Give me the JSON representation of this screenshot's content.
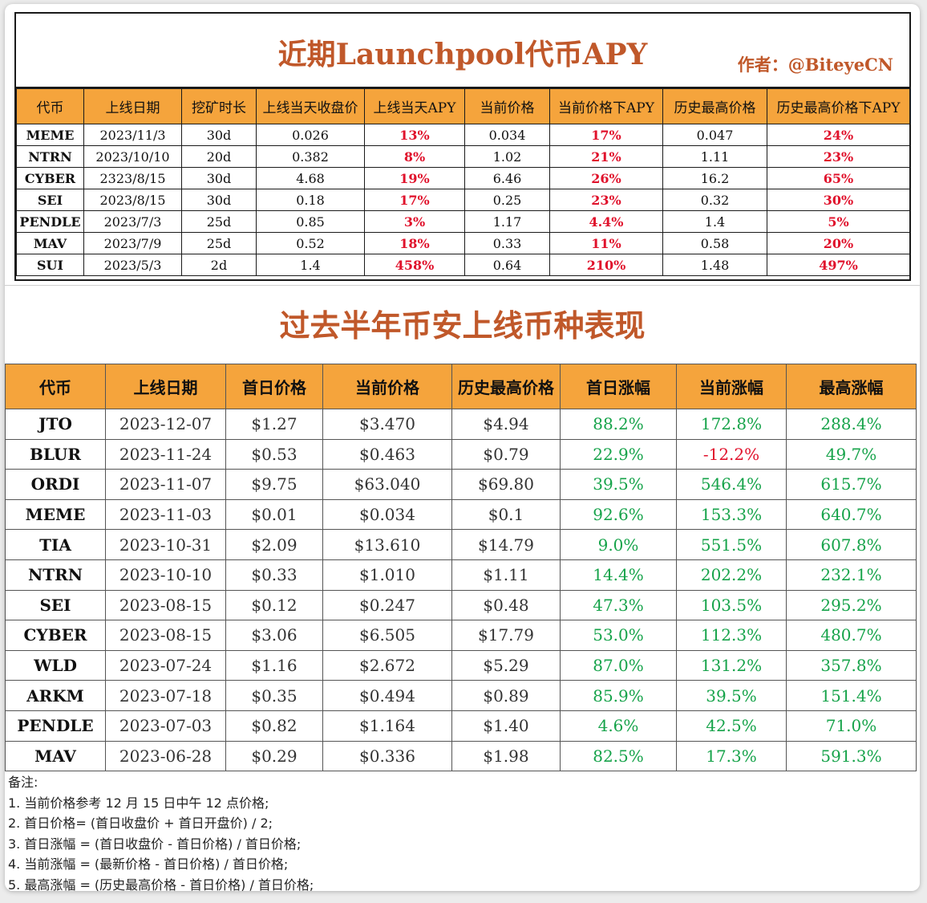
{
  "t1": {
    "title": "近期Launchpool代币APY",
    "author": "作者：@BiteyeCN",
    "headers": [
      "代币",
      "上线日期",
      "挖矿时长",
      "上线当天收盘价",
      "上线当天APY",
      "当前价格",
      "当前价格下APY",
      "历史最高价格",
      "历史最高价格下APY"
    ],
    "rows": [
      [
        "MEME",
        "2023/11/3",
        "30d",
        "0.026",
        "13%",
        "0.034",
        "17%",
        "0.047",
        "24%"
      ],
      [
        "NTRN",
        "2023/10/10",
        "20d",
        "0.382",
        "8%",
        "1.02",
        "21%",
        "1.11",
        "23%"
      ],
      [
        "CYBER",
        "2323/8/15",
        "30d",
        "4.68",
        "19%",
        "6.46",
        "26%",
        "16.2",
        "65%"
      ],
      [
        "SEI",
        "2023/8/15",
        "30d",
        "0.18",
        "17%",
        "0.25",
        "23%",
        "0.32",
        "30%"
      ],
      [
        "PENDLE",
        "2023/7/3",
        "25d",
        "0.85",
        "3%",
        "1.17",
        "4.4%",
        "1.4",
        "5%"
      ],
      [
        "MAV",
        "2023/7/9",
        "25d",
        "0.52",
        "18%",
        "0.33",
        "11%",
        "0.58",
        "20%"
      ],
      [
        "SUI",
        "2023/5/3",
        "2d",
        "1.4",
        "458%",
        "0.64",
        "210%",
        "1.48",
        "497%"
      ]
    ]
  },
  "t2": {
    "title": "过去半年币安上线币种表现",
    "headers": [
      "代币",
      "上线日期",
      "首日价格",
      "当前价格",
      "历史最高价格",
      "首日涨幅",
      "当前涨幅",
      "最高涨幅"
    ],
    "rows": [
      [
        "JTO",
        "2023-12-07",
        "$1.27",
        "$3.470",
        "$4.94",
        "88.2%",
        "172.8%",
        "288.4%"
      ],
      [
        "BLUR",
        "2023-11-24",
        "$0.53",
        "$0.463",
        "$0.79",
        "22.9%",
        "-12.2%",
        "49.7%"
      ],
      [
        "ORDI",
        "2023-11-07",
        "$9.75",
        "$63.040",
        "$69.80",
        "39.5%",
        "546.4%",
        "615.7%"
      ],
      [
        "MEME",
        "2023-11-03",
        "$0.01",
        "$0.034",
        "$0.1",
        "92.6%",
        "153.3%",
        "640.7%"
      ],
      [
        "TIA",
        "2023-10-31",
        "$2.09",
        "$13.610",
        "$14.79",
        "9.0%",
        "551.5%",
        "607.8%"
      ],
      [
        "NTRN",
        "2023-10-10",
        "$0.33",
        "$1.010",
        "$1.11",
        "14.4%",
        "202.2%",
        "232.1%"
      ],
      [
        "SEI",
        "2023-08-15",
        "$0.12",
        "$0.247",
        "$0.48",
        "47.3%",
        "103.5%",
        "295.2%"
      ],
      [
        "CYBER",
        "2023-08-15",
        "$3.06",
        "$6.505",
        "$17.79",
        "53.0%",
        "112.3%",
        "480.7%"
      ],
      [
        "WLD",
        "2023-07-24",
        "$1.16",
        "$2.672",
        "$5.29",
        "87.0%",
        "131.2%",
        "357.8%"
      ],
      [
        "ARKM",
        "2023-07-18",
        "$0.35",
        "$0.494",
        "$0.89",
        "85.9%",
        "39.5%",
        "151.4%"
      ],
      [
        "PENDLE",
        "2023-07-03",
        "$0.82",
        "$1.164",
        "$1.40",
        "4.6%",
        "42.5%",
        "71.0%"
      ],
      [
        "MAV",
        "2023-06-28",
        "$0.29",
        "$0.336",
        "$1.98",
        "82.5%",
        "17.3%",
        "591.3%"
      ]
    ]
  },
  "notes": {
    "heading": "备注:",
    "lines": [
      "1. 当前价格参考 12 月 15 日中午 12 点价格;",
      "2. 首日价格= (首日收盘价 + 首日开盘价) / 2;",
      "3. 首日涨幅 = (首日收盘价 - 首日价格) / 首日价格;",
      "4. 当前涨幅 = (最新价格 - 首日价格) / 首日价格;",
      "5. 最高涨幅 = (历史最高价格 - 首日价格) / 首日价格;"
    ]
  },
  "colors": {
    "header_bg": "#f5a43c",
    "title": "#c0582a",
    "red": "#e0112b",
    "green": "#16a34a"
  }
}
